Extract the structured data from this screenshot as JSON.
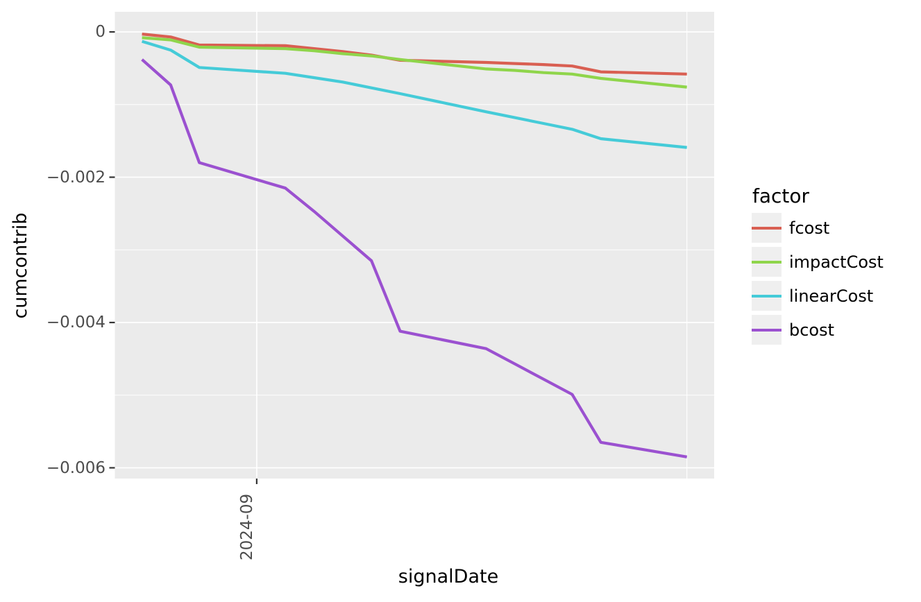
{
  "chart_data": {
    "type": "line",
    "title": "",
    "xlabel": "signalDate",
    "ylabel": "cumcontrib",
    "legend_title": "factor",
    "legend_position": "right",
    "grid": true,
    "panel_bg": "#ebebeb",
    "grid_color": "#ffffff",
    "tick_mark_color": "#333333",
    "axis_text_color": "#4d4d4d",
    "legend_key_bg": "#efefef",
    "x": [
      "2024-08-28",
      "2024-08-29",
      "2024-08-30",
      "2024-09-02",
      "2024-09-03",
      "2024-09-04",
      "2024-09-05",
      "2024-09-06",
      "2024-09-09",
      "2024-09-10",
      "2024-09-11",
      "2024-09-12",
      "2024-09-13",
      "2024-09-16"
    ],
    "series": [
      {
        "name": "fcost",
        "color": "#d95f52",
        "values": [
          -3e-05,
          -7e-05,
          -0.00018,
          -0.00019,
          -0.00023,
          -0.00027,
          -0.00032,
          -0.00039,
          -0.00042,
          -0.000435,
          -0.00045,
          -0.00047,
          -0.00055,
          -0.00058
        ]
      },
      {
        "name": "impactCost",
        "color": "#8fd54b",
        "values": [
          -8e-05,
          -0.00011,
          -0.00021,
          -0.00023,
          -0.00026,
          -0.0003,
          -0.00033,
          -0.00038,
          -0.00051,
          -0.00053,
          -0.00056,
          -0.00058,
          -0.00064,
          -0.00076
        ]
      },
      {
        "name": "linearCost",
        "color": "#45cbd8",
        "values": [
          -0.00013,
          -0.00025,
          -0.00049,
          -0.00057,
          -0.00063,
          -0.00069,
          -0.00077,
          -0.00085,
          -0.0011,
          -0.00118,
          -0.00126,
          -0.00134,
          -0.00147,
          -0.00159
        ]
      },
      {
        "name": "bcost",
        "color": "#9b51d0",
        "values": [
          -0.00038,
          -0.00073,
          -0.0018,
          -0.00215,
          -0.00247,
          -0.00281,
          -0.00315,
          -0.00412,
          -0.00436,
          -0.00457,
          -0.00478,
          -0.00499,
          -0.00565,
          -0.00585
        ]
      }
    ],
    "xlim": [
      "2024-08-27",
      "2024-09-17"
    ],
    "ylim": [
      -0.00615,
      0.00028
    ],
    "y_ticks": [
      {
        "value": 0,
        "label": "0"
      },
      {
        "value": -0.002,
        "label": "−0.002"
      },
      {
        "value": -0.004,
        "label": "−0.004"
      },
      {
        "value": -0.006,
        "label": "−0.006"
      }
    ],
    "y_minor": [
      -0.001,
      -0.003,
      -0.005
    ],
    "x_ticks": [
      {
        "value": "2024-09-01",
        "label": "2024-09"
      }
    ],
    "x_minor": [
      "2024-09-16"
    ]
  }
}
